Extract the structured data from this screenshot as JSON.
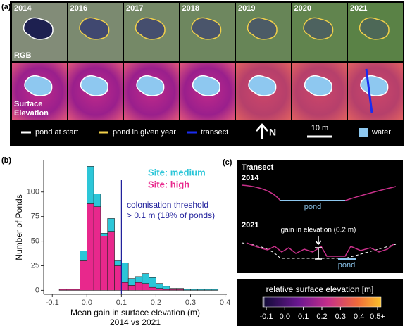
{
  "labels": {
    "a": "(a)",
    "b": "(b)",
    "c": "(c)"
  },
  "panel_a": {
    "years": [
      "2014",
      "2016",
      "2017",
      "2018",
      "2019",
      "2020",
      "2021"
    ],
    "row_rgb": "RGB",
    "row_elevation": [
      "Surface",
      "Elevation"
    ],
    "legend": [
      "pond at start",
      "pond in given year",
      "transect"
    ],
    "north": "N",
    "scale": "10 m",
    "water": "water"
  },
  "chart_data": {
    "type": "histogram",
    "bins": [
      -0.08,
      -0.06,
      -0.04,
      -0.02,
      0,
      0.02,
      0.04,
      0.06,
      0.08,
      0.1,
      0.12,
      0.14,
      0.16,
      0.18,
      0.2,
      0.22,
      0.24,
      0.26,
      0.28,
      0.3,
      0.32,
      0.34,
      0.36,
      0.38
    ],
    "series": [
      {
        "name": "Site: high",
        "color": "#e8288c",
        "values": [
          1,
          1,
          1,
          30,
          88,
          85,
          55,
          60,
          25,
          8,
          5,
          8,
          7,
          3,
          2,
          1,
          1,
          1,
          0,
          0,
          0,
          0,
          0
        ]
      },
      {
        "name": "Site: medium",
        "color": "#2cc6d8",
        "values": [
          0,
          0,
          0,
          10,
          38,
          13,
          3,
          13,
          5,
          20,
          7,
          6,
          10,
          10,
          5,
          3,
          1,
          1,
          1,
          1,
          1,
          1,
          1
        ]
      }
    ],
    "xlim": [
      -0.125,
      0.405
    ],
    "ylim": [
      -4,
      132
    ],
    "xticks": [
      -0.1,
      {
        "value": 0,
        "label": "0.0"
      },
      0.1,
      0.2,
      0.3,
      0.4
    ],
    "yticks": [
      0,
      25,
      50,
      75,
      100
    ],
    "ylabel": "Number of Ponds",
    "xlabel": [
      "Mean gain in surface elevation (m)",
      "2014 vs 2021"
    ],
    "threshold": 0.1,
    "threshold_color": "#1c1c9a",
    "annotation": [
      "colonisation threshold",
      "> 0.1 m (18% of ponds)"
    ]
  },
  "panel_c": {
    "transect": "Transect",
    "year_start": "2014",
    "year_end": "2021",
    "pond": "pond",
    "gain": "gain in elevation (0.2 m)",
    "colorbar_title": "relative surface elevation [m]",
    "colorbar_ticks": [
      "-0.1",
      "0.0",
      "0.1",
      "0.2",
      "0.3",
      "0.4",
      "0.5+"
    ]
  }
}
